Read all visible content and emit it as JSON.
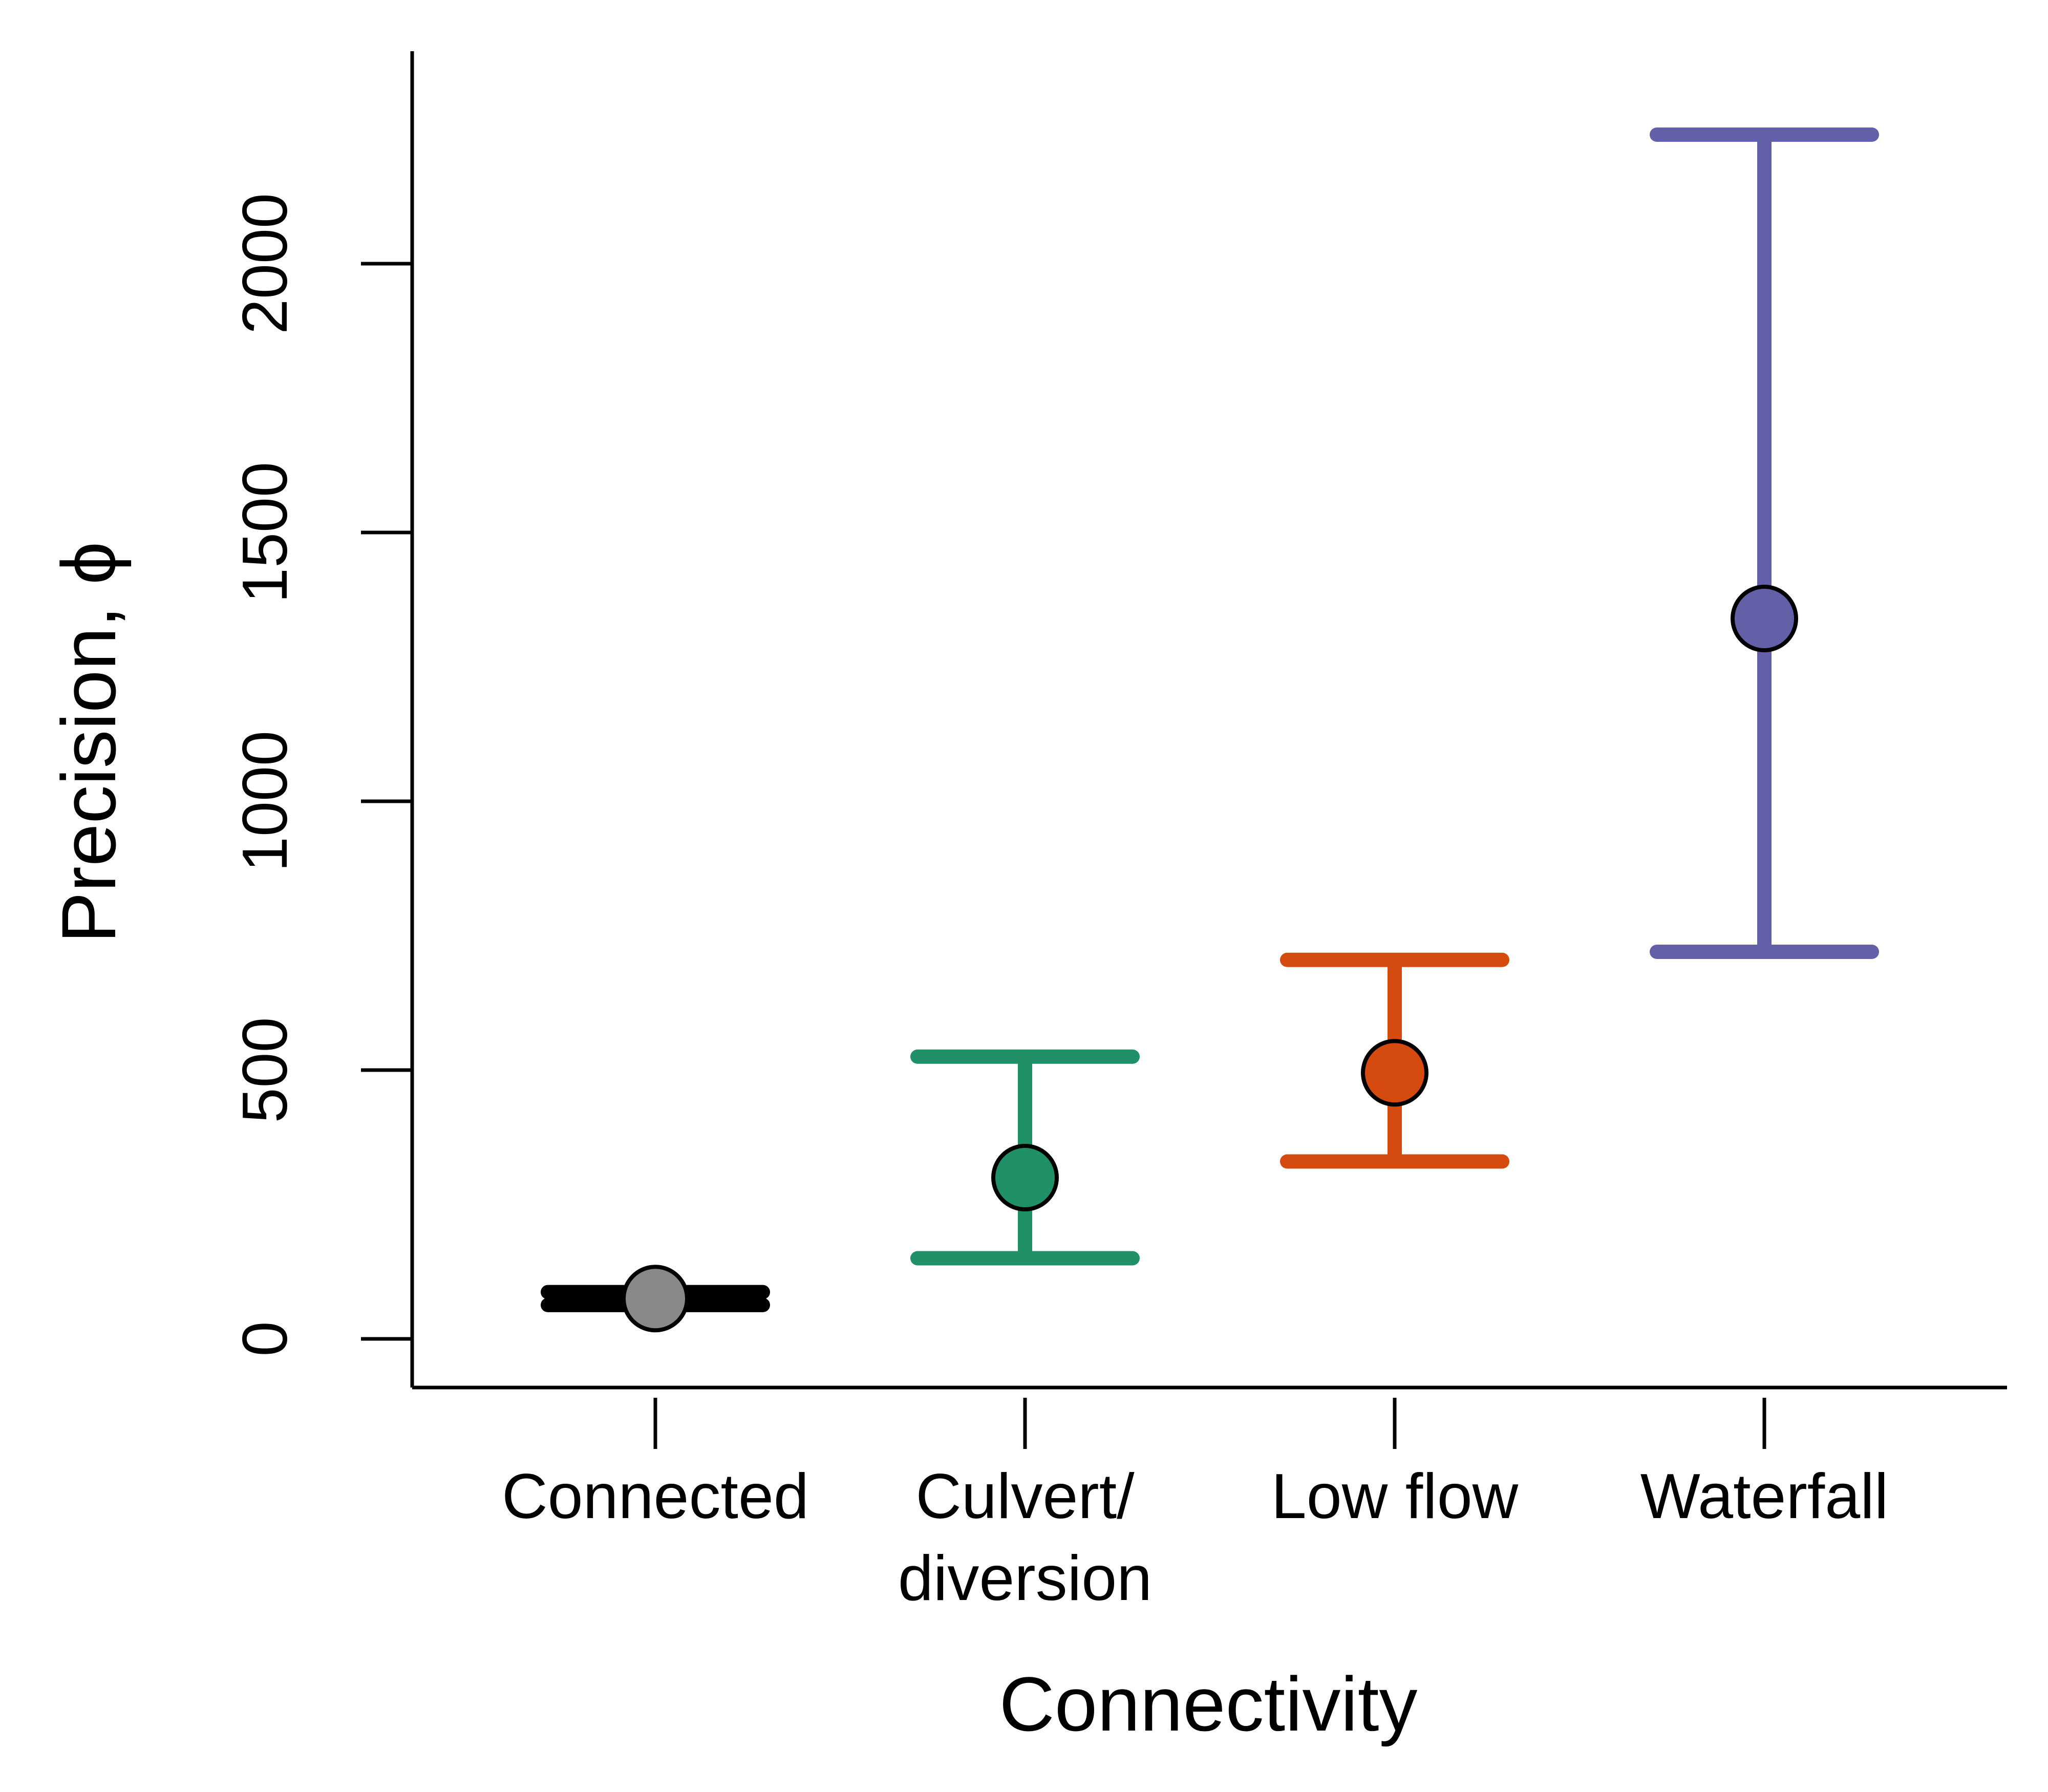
{
  "chart_data": {
    "type": "scatter",
    "title": "",
    "xlabel": "Connectivity",
    "ylabel": "Precision, ϕ",
    "ylim": [
      -75,
      2480
    ],
    "yticks": [
      0,
      500,
      1000,
      1500,
      2000
    ],
    "grid": false,
    "categories": [
      {
        "label_lines": [
          "Connected"
        ],
        "value": 75,
        "lower": 63,
        "upper": 87,
        "color": "#000000",
        "point_color": "#888888"
      },
      {
        "label_lines": [
          "Culvert/",
          "diversion"
        ],
        "value": 300,
        "lower": 150,
        "upper": 525,
        "color": "#1f9068",
        "point_color": "#1f9068"
      },
      {
        "label_lines": [
          "Low flow"
        ],
        "value": 495,
        "lower": 330,
        "upper": 705,
        "color": "#d44a0f",
        "point_color": "#d44a0f"
      },
      {
        "label_lines": [
          "Waterfall"
        ],
        "value": 1340,
        "lower": 720,
        "upper": 2240,
        "color": "#6460a8",
        "point_color": "#6460a8"
      }
    ]
  }
}
